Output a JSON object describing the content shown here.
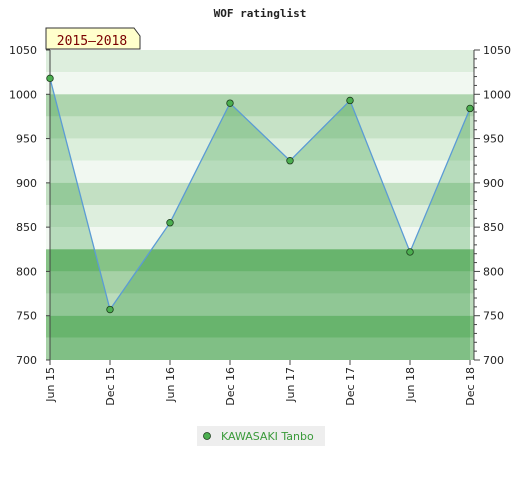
{
  "chart_data": {
    "type": "area",
    "title": "WOF ratinglist",
    "period_label": "2015–2018",
    "categories": [
      "Jun 15",
      "Dec 15",
      "Jun 16",
      "Dec 16",
      "Jun 17",
      "Dec 17",
      "Jun 18",
      "Dec 18"
    ],
    "series": [
      {
        "name": "KAWASAKI Tanbo",
        "values": [
          1018,
          757,
          855,
          990,
          925,
          993,
          822,
          984
        ]
      }
    ],
    "ylim": [
      700,
      1050
    ],
    "yticks": [
      700,
      750,
      800,
      850,
      900,
      950,
      1000,
      1050
    ],
    "grid": true,
    "legend_position": "bottom-center",
    "colors": {
      "line": "#5b9bd5",
      "marker_fill": "#4caf50",
      "legend_text": "#3a9a3a",
      "label_box_bg": "#ffffcc",
      "label_box_text": "#7a0000"
    }
  }
}
